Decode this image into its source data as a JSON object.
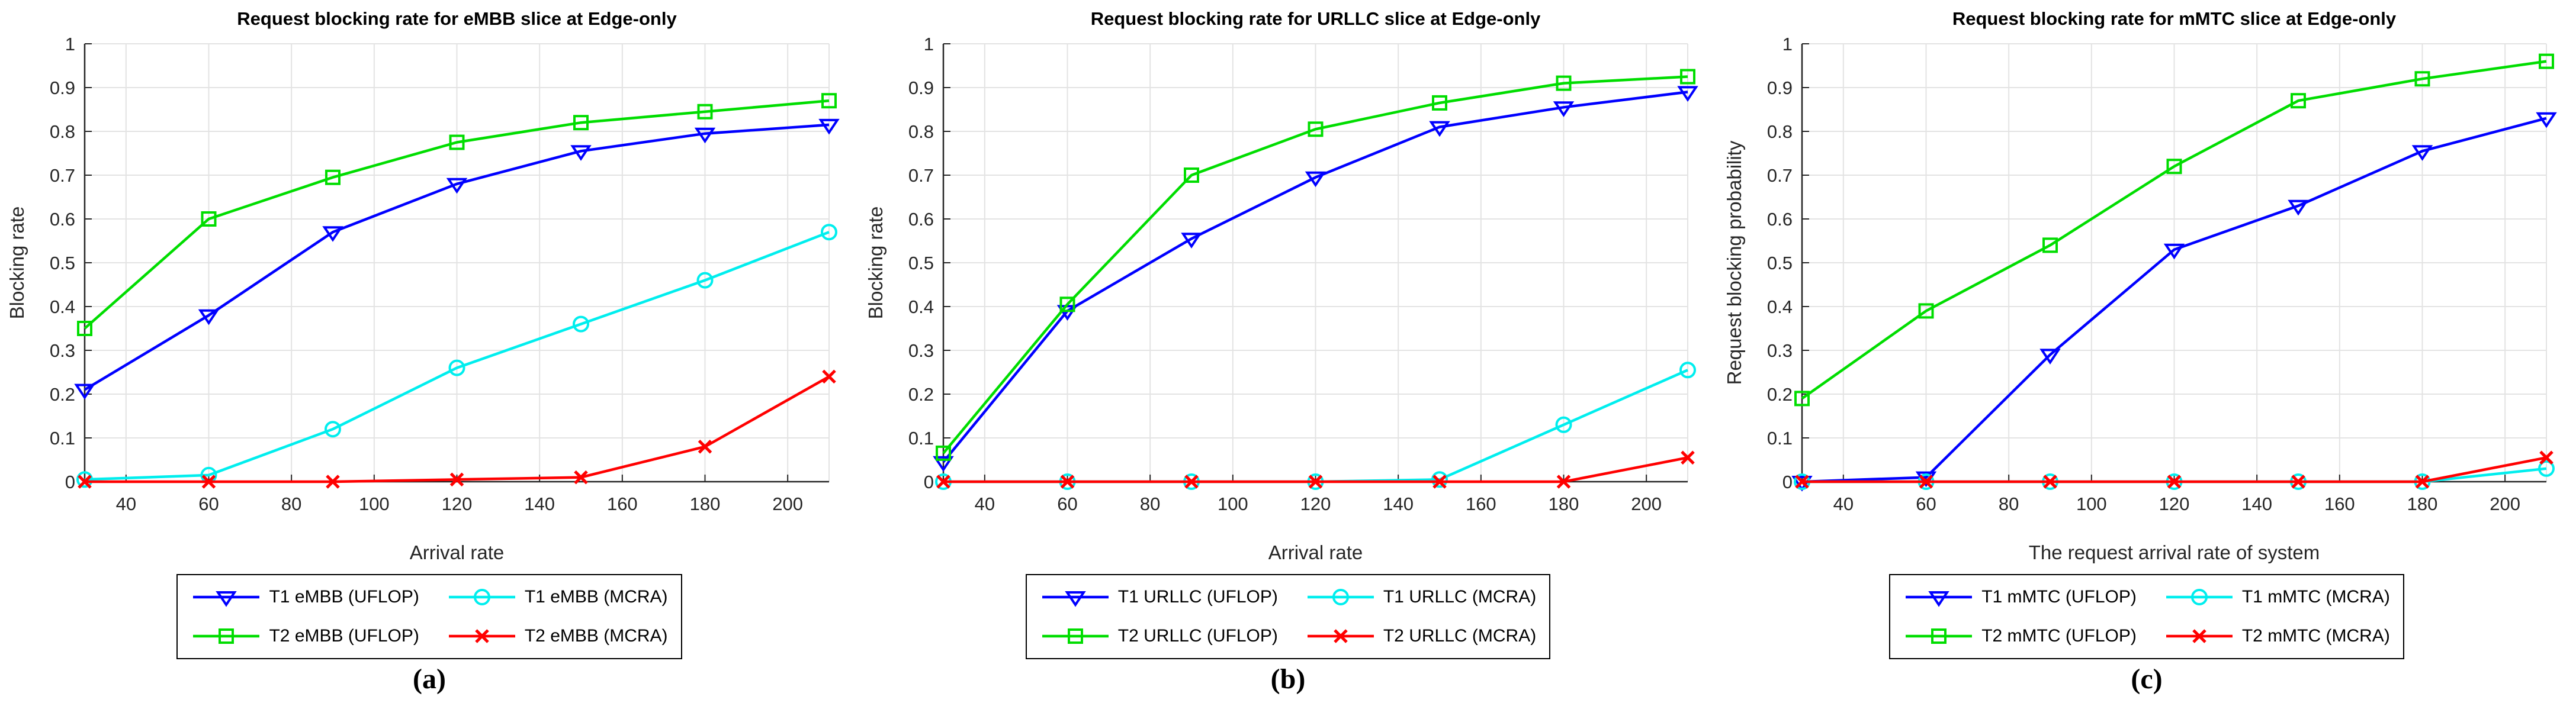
{
  "figure": {
    "background": "#FFFFFF",
    "grid_color": "#E3E3E3",
    "axis_color": "#262626"
  },
  "chart_data": [
    {
      "type": "line",
      "title": "Request blocking rate for eMBB slice at Edge-only",
      "xlabel": "Arrival rate",
      "ylabel": "Blocking rate",
      "caption": "(a)",
      "xlim": [
        30,
        210
      ],
      "ylim": [
        0,
        1
      ],
      "grid": true,
      "legend_position": "below",
      "x": [
        30,
        60,
        90,
        120,
        150,
        180,
        210
      ],
      "xticks": [
        40,
        60,
        80,
        100,
        120,
        140,
        160,
        180,
        200
      ],
      "yticks": [
        0,
        0.1,
        0.2,
        0.3,
        0.4,
        0.5,
        0.6,
        0.7,
        0.8,
        0.9,
        1
      ],
      "ytick_labels": [
        "0",
        "0.1",
        "0.2",
        "0.3",
        "0.4",
        "0.5",
        "0.6",
        "0.7",
        "0.8",
        "0.9",
        "1"
      ],
      "series": [
        {
          "name": "T1 eMBB (UFLOP)",
          "color": "#0000FF",
          "marker": "triangle-down",
          "values": [
            0.21,
            0.38,
            0.57,
            0.68,
            0.755,
            0.795,
            0.815
          ]
        },
        {
          "name": "T2 eMBB (UFLOP)",
          "color": "#00DD00",
          "marker": "square",
          "values": [
            0.35,
            0.6,
            0.695,
            0.775,
            0.82,
            0.845,
            0.87
          ]
        },
        {
          "name": "T1 eMBB (MCRA)",
          "color": "#00EEEE",
          "marker": "circle",
          "values": [
            0.005,
            0.015,
            0.12,
            0.26,
            0.36,
            0.46,
            0.57
          ]
        },
        {
          "name": "T2 eMBB (MCRA)",
          "color": "#FF0000",
          "marker": "x",
          "values": [
            0,
            0,
            0,
            0.005,
            0.01,
            0.08,
            0.24
          ]
        }
      ],
      "legend_order": [
        0,
        2,
        1,
        3
      ]
    },
    {
      "type": "line",
      "title": "Request blocking rate for URLLC slice at Edge-only",
      "xlabel": "Arrival rate",
      "ylabel": "Blocking rate",
      "caption": "(b)",
      "xlim": [
        30,
        210
      ],
      "ylim": [
        0,
        1
      ],
      "grid": true,
      "legend_position": "below",
      "x": [
        30,
        60,
        90,
        120,
        150,
        180,
        210
      ],
      "xticks": [
        40,
        60,
        80,
        100,
        120,
        140,
        160,
        180,
        200
      ],
      "yticks": [
        0,
        0.1,
        0.2,
        0.3,
        0.4,
        0.5,
        0.6,
        0.7,
        0.8,
        0.9,
        1
      ],
      "ytick_labels": [
        "0",
        "0.1",
        "0.2",
        "0.3",
        "0.4",
        "0.5",
        "0.6",
        "0.7",
        "0.8",
        "0.9",
        "1"
      ],
      "series": [
        {
          "name": "T1 URLLC (UFLOP)",
          "color": "#0000FF",
          "marker": "triangle-down",
          "values": [
            0.045,
            0.39,
            0.555,
            0.695,
            0.81,
            0.855,
            0.89
          ]
        },
        {
          "name": "T2 URLLC (UFLOP)",
          "color": "#00DD00",
          "marker": "square",
          "values": [
            0.065,
            0.405,
            0.7,
            0.805,
            0.865,
            0.91,
            0.925
          ]
        },
        {
          "name": "T1 URLLC (MCRA)",
          "color": "#00EEEE",
          "marker": "circle",
          "values": [
            0,
            0,
            0,
            0,
            0.005,
            0.13,
            0.255
          ]
        },
        {
          "name": "T2 URLLC (MCRA)",
          "color": "#FF0000",
          "marker": "x",
          "values": [
            0,
            0,
            0,
            0,
            0,
            0,
            0.055
          ]
        }
      ],
      "legend_order": [
        0,
        2,
        1,
        3
      ]
    },
    {
      "type": "line",
      "title": "Request blocking rate for mMTC slice at Edge-only",
      "xlabel": "The request arrival rate of system",
      "ylabel": "Request blocking probability",
      "caption": "(c)",
      "xlim": [
        30,
        210
      ],
      "ylim": [
        0,
        1
      ],
      "grid": true,
      "legend_position": "below",
      "x": [
        30,
        60,
        90,
        120,
        150,
        180,
        210
      ],
      "xticks": [
        40,
        60,
        80,
        100,
        120,
        140,
        160,
        180,
        200
      ],
      "yticks": [
        0,
        0.1,
        0.2,
        0.3,
        0.4,
        0.5,
        0.6,
        0.7,
        0.8,
        0.9,
        1
      ],
      "ytick_labels": [
        "0",
        "0.1",
        "0.2",
        "0.3",
        "0.4",
        "0.5",
        "0.6",
        "0.7",
        "0.8",
        "0.9",
        "1"
      ],
      "series": [
        {
          "name": "T1 mMTC (UFLOP)",
          "color": "#0000FF",
          "marker": "triangle-down",
          "values": [
            0,
            0.01,
            0.29,
            0.53,
            0.63,
            0.755,
            0.83
          ]
        },
        {
          "name": "T2 mMTC (UFLOP)",
          "color": "#00DD00",
          "marker": "square",
          "values": [
            0.19,
            0.39,
            0.54,
            0.72,
            0.87,
            0.92,
            0.96
          ]
        },
        {
          "name": "T1 mMTC (MCRA)",
          "color": "#00EEEE",
          "marker": "circle",
          "values": [
            0,
            0,
            0,
            0,
            0,
            0,
            0.03
          ]
        },
        {
          "name": "T2 mMTC (MCRA)",
          "color": "#FF0000",
          "marker": "x",
          "values": [
            0,
            0,
            0,
            0,
            0,
            0,
            0.055
          ]
        }
      ],
      "legend_order": [
        0,
        2,
        1,
        3
      ]
    }
  ]
}
